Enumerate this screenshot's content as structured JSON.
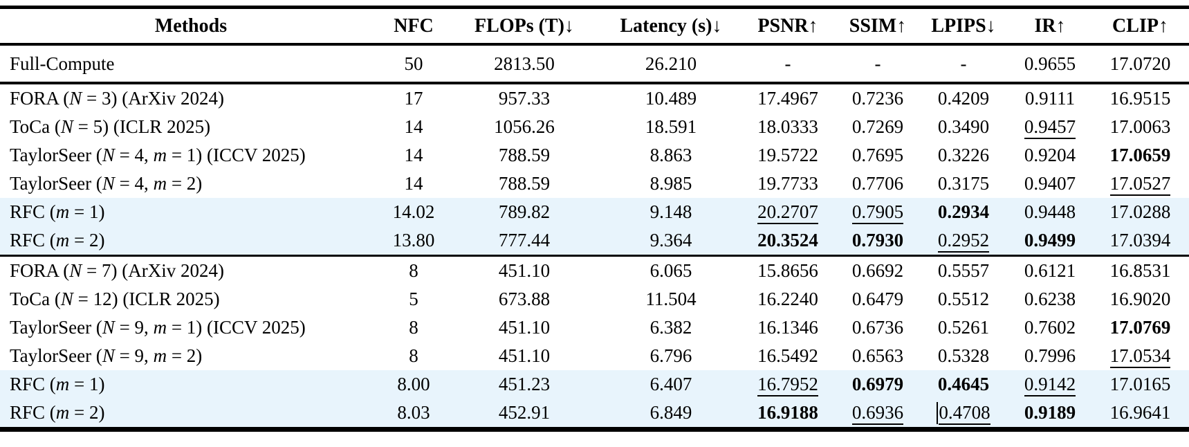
{
  "table": {
    "highlight_color": "#e8f4fc",
    "columns": [
      "Methods",
      "NFC",
      "FLOPs (T)↓",
      "Latency (s)↓",
      "PSNR↑",
      "SSIM↑",
      "LPIPS↓",
      "IR↑",
      "CLIP↑"
    ],
    "sections": [
      {
        "name": "full-compute-section",
        "rows": [
          {
            "method": "Full-Compute",
            "highlight": false,
            "cells": [
              {
                "v": "50"
              },
              {
                "v": "2813.50"
              },
              {
                "v": "26.210"
              },
              {
                "v": "-"
              },
              {
                "v": "-"
              },
              {
                "v": "-"
              },
              {
                "v": "0.9655"
              },
              {
                "v": "17.0720"
              }
            ]
          }
        ]
      },
      {
        "name": "high-nfc-section",
        "rows": [
          {
            "method": "FORA (N = 3) (ArXiv 2024)",
            "highlight": false,
            "cells": [
              {
                "v": "17"
              },
              {
                "v": "957.33"
              },
              {
                "v": "10.489"
              },
              {
                "v": "17.4967"
              },
              {
                "v": "0.7236"
              },
              {
                "v": "0.4209"
              },
              {
                "v": "0.9111"
              },
              {
                "v": "16.9515"
              }
            ]
          },
          {
            "method": "ToCa (N = 5) (ICLR 2025)",
            "highlight": false,
            "cells": [
              {
                "v": "14"
              },
              {
                "v": "1056.26"
              },
              {
                "v": "18.591"
              },
              {
                "v": "18.0333"
              },
              {
                "v": "0.7269"
              },
              {
                "v": "0.3490"
              },
              {
                "v": "0.9457",
                "s": "u"
              },
              {
                "v": "17.0063"
              }
            ]
          },
          {
            "method": "TaylorSeer (N = 4, m = 1) (ICCV 2025)",
            "highlight": false,
            "cells": [
              {
                "v": "14"
              },
              {
                "v": "788.59"
              },
              {
                "v": "8.863"
              },
              {
                "v": "19.5722"
              },
              {
                "v": "0.7695"
              },
              {
                "v": "0.3226"
              },
              {
                "v": "0.9204"
              },
              {
                "v": "17.0659",
                "s": "b"
              }
            ]
          },
          {
            "method": "TaylorSeer (N = 4, m = 2)",
            "highlight": false,
            "cells": [
              {
                "v": "14"
              },
              {
                "v": "788.59"
              },
              {
                "v": "8.985"
              },
              {
                "v": "19.7733"
              },
              {
                "v": "0.7706"
              },
              {
                "v": "0.3175"
              },
              {
                "v": "0.9407"
              },
              {
                "v": "17.0527",
                "s": "u"
              }
            ]
          },
          {
            "method": "RFC (m = 1)",
            "highlight": true,
            "cells": [
              {
                "v": "14.02"
              },
              {
                "v": "789.82"
              },
              {
                "v": "9.148"
              },
              {
                "v": "20.2707",
                "s": "u"
              },
              {
                "v": "0.7905",
                "s": "u"
              },
              {
                "v": "0.2934",
                "s": "b"
              },
              {
                "v": "0.9448"
              },
              {
                "v": "17.0288"
              }
            ]
          },
          {
            "method": "RFC (m = 2)",
            "highlight": true,
            "cells": [
              {
                "v": "13.80"
              },
              {
                "v": "777.44"
              },
              {
                "v": "9.364"
              },
              {
                "v": "20.3524",
                "s": "b"
              },
              {
                "v": "0.7930",
                "s": "b"
              },
              {
                "v": "0.2952",
                "s": "u"
              },
              {
                "v": "0.9499",
                "s": "b"
              },
              {
                "v": "17.0394"
              }
            ]
          }
        ]
      },
      {
        "name": "low-nfc-section",
        "rows": [
          {
            "method": "FORA (N = 7) (ArXiv 2024)",
            "highlight": false,
            "cells": [
              {
                "v": "8"
              },
              {
                "v": "451.10"
              },
              {
                "v": "6.065"
              },
              {
                "v": "15.8656"
              },
              {
                "v": "0.6692"
              },
              {
                "v": "0.5557"
              },
              {
                "v": "0.6121"
              },
              {
                "v": "16.8531"
              }
            ]
          },
          {
            "method": "ToCa (N = 12) (ICLR 2025)",
            "highlight": false,
            "cells": [
              {
                "v": "5"
              },
              {
                "v": "673.88"
              },
              {
                "v": "11.504"
              },
              {
                "v": "16.2240"
              },
              {
                "v": "0.6479"
              },
              {
                "v": "0.5512"
              },
              {
                "v": "0.6238"
              },
              {
                "v": "16.9020"
              }
            ]
          },
          {
            "method": "TaylorSeer (N = 9, m = 1) (ICCV 2025)",
            "highlight": false,
            "cells": [
              {
                "v": "8"
              },
              {
                "v": "451.10"
              },
              {
                "v": "6.382"
              },
              {
                "v": "16.1346"
              },
              {
                "v": "0.6736"
              },
              {
                "v": "0.5261"
              },
              {
                "v": "0.7602"
              },
              {
                "v": "17.0769",
                "s": "b"
              }
            ]
          },
          {
            "method": "TaylorSeer (N = 9, m = 2)",
            "highlight": false,
            "cells": [
              {
                "v": "8"
              },
              {
                "v": "451.10"
              },
              {
                "v": "6.796"
              },
              {
                "v": "16.5492"
              },
              {
                "v": "0.6563"
              },
              {
                "v": "0.5328"
              },
              {
                "v": "0.7996"
              },
              {
                "v": "17.0534",
                "s": "u"
              }
            ]
          },
          {
            "method": "RFC (m = 1)",
            "highlight": true,
            "cells": [
              {
                "v": "8.00"
              },
              {
                "v": "451.23"
              },
              {
                "v": "6.407"
              },
              {
                "v": "16.7952",
                "s": "u"
              },
              {
                "v": "0.6979",
                "s": "b"
              },
              {
                "v": "0.4645",
                "s": "b"
              },
              {
                "v": "0.9142",
                "s": "u"
              },
              {
                "v": "17.0165"
              }
            ]
          },
          {
            "method": "RFC (m = 2)",
            "highlight": true,
            "cells": [
              {
                "v": "8.03"
              },
              {
                "v": "452.91"
              },
              {
                "v": "6.849"
              },
              {
                "v": "16.9188",
                "s": "b"
              },
              {
                "v": "0.6936",
                "s": "u"
              },
              {
                "v": "0.4708",
                "s": "u",
                "caret": true
              },
              {
                "v": "0.9189",
                "s": "b"
              },
              {
                "v": "16.9641"
              }
            ]
          }
        ]
      }
    ]
  }
}
